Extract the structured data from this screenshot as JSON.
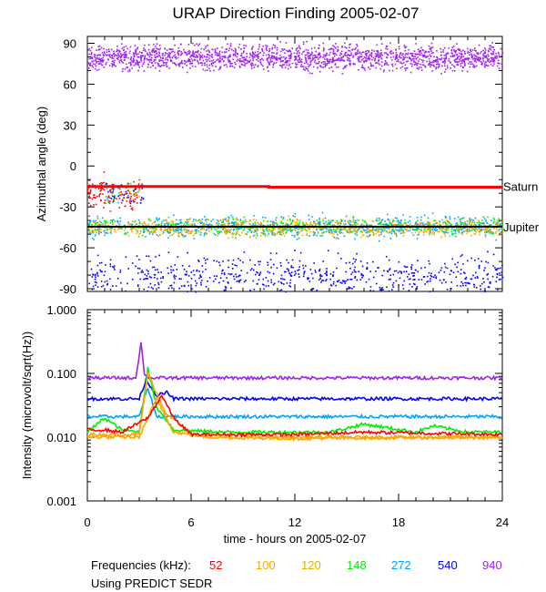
{
  "chart_data": [
    {
      "type": "scatter",
      "title": "URAP Direction Finding  2005-02-07",
      "xlabel": "",
      "ylabel": "Azimuthal angle (deg)",
      "xlim": [
        0,
        24
      ],
      "ylim": [
        -92,
        95
      ],
      "yticks": [
        90,
        60,
        30,
        0,
        -30,
        -60,
        -90
      ],
      "yticklabels": [
        "90",
        "60",
        "30",
        "0",
        "-30",
        "-60",
        "-90"
      ],
      "reference_lines": [
        {
          "name": "Saturn",
          "color": "#ff0000",
          "x": [
            0,
            10.5,
            10.5,
            24
          ],
          "y": [
            -15,
            -15,
            -15.5,
            -15.5
          ]
        },
        {
          "name": "Jupiter",
          "color": "#000000",
          "x": [
            0,
            24
          ],
          "y": [
            -44.5,
            -44.5
          ]
        }
      ],
      "series": [
        {
          "name": "940",
          "color": "#a020f0",
          "x_range": [
            0,
            24
          ],
          "y_center": 80,
          "y_spread": 6
        },
        {
          "name": "148",
          "color": "#00ee00",
          "x_range": [
            0,
            24
          ],
          "y_center": -44,
          "y_spread": 4
        },
        {
          "name": "272",
          "color": "#00a0ff",
          "x_range": [
            0,
            24
          ],
          "y_center": -44,
          "y_spread": 5
        },
        {
          "name": "120",
          "color": "#ffa500",
          "x_range": [
            0,
            24
          ],
          "y_center": -45,
          "y_spread": 4
        },
        {
          "name": "540",
          "color": "#0000ff",
          "x_range": [
            0,
            24
          ],
          "y_center": -80,
          "y_spread": 10
        },
        {
          "name": "52",
          "color": "#ff0000",
          "x_range": [
            0,
            3
          ],
          "y_center": -20,
          "y_spread": 8
        }
      ],
      "annotations": [
        {
          "text": "Saturn",
          "y": -15
        },
        {
          "text": "Jupiter",
          "y": -44.5
        }
      ]
    },
    {
      "type": "line",
      "xlabel": "time - hours on 2005-02-07",
      "ylabel": "Intensity (microvolt/sqrt(Hz))",
      "xlim": [
        0,
        24
      ],
      "xticks": [
        0,
        6,
        12,
        18,
        24
      ],
      "xticklabels": [
        "0",
        "6",
        "12",
        "18",
        "24"
      ],
      "yscale": "log",
      "ylim": [
        0.001,
        1.0
      ],
      "yticks": [
        1.0,
        0.1,
        0.01,
        0.001
      ],
      "yticklabels": [
        "1.000",
        "0.100",
        "0.010",
        "0.001"
      ],
      "series": [
        {
          "name": "940",
          "color": "#a020f0",
          "x": [
            0,
            2.8,
            3.1,
            3.3,
            3.6,
            4,
            24
          ],
          "y": [
            0.085,
            0.085,
            0.3,
            0.1,
            0.085,
            0.085,
            0.085
          ]
        },
        {
          "name": "540",
          "color": "#0000ff",
          "x": [
            0,
            3,
            3.4,
            4,
            4.6,
            5,
            24
          ],
          "y": [
            0.04,
            0.04,
            0.08,
            0.045,
            0.05,
            0.04,
            0.04
          ]
        },
        {
          "name": "272",
          "color": "#00a0ff",
          "x": [
            0,
            3,
            3.5,
            4,
            24
          ],
          "y": [
            0.021,
            0.021,
            0.06,
            0.021,
            0.021
          ]
        },
        {
          "name": "148",
          "color": "#00ee00",
          "x": [
            0,
            1,
            2,
            3,
            3.5,
            4,
            5,
            8,
            12,
            14,
            16,
            19,
            20,
            22,
            24
          ],
          "y": [
            0.012,
            0.02,
            0.013,
            0.012,
            0.12,
            0.03,
            0.013,
            0.012,
            0.012,
            0.012,
            0.016,
            0.012,
            0.015,
            0.012,
            0.012
          ]
        },
        {
          "name": "120",
          "color": "#ffa500",
          "x": [
            0,
            3,
            3.5,
            4.5,
            6,
            12,
            18,
            24
          ],
          "y": [
            0.011,
            0.011,
            0.1,
            0.025,
            0.011,
            0.01,
            0.01,
            0.01
          ]
        },
        {
          "name": "100",
          "color": "#ffa500",
          "x": [
            0,
            3,
            4,
            5,
            7,
            12,
            18,
            24
          ],
          "y": [
            0.01,
            0.01,
            0.04,
            0.012,
            0.01,
            0.0095,
            0.0098,
            0.0098
          ]
        },
        {
          "name": "52",
          "color": "#ff0000",
          "x": [
            0,
            1,
            2,
            3.5,
            4.3,
            5,
            6,
            12,
            16,
            24
          ],
          "y": [
            0.013,
            0.013,
            0.012,
            0.02,
            0.045,
            0.02,
            0.011,
            0.011,
            0.012,
            0.011
          ]
        }
      ]
    }
  ],
  "legend": {
    "label": "Frequencies (kHz):",
    "items": [
      {
        "text": "52",
        "color": "#ff0000"
      },
      {
        "text": "100",
        "color": "#ffa500"
      },
      {
        "text": "120",
        "color": "#e0b000"
      },
      {
        "text": "148",
        "color": "#00ee00"
      },
      {
        "text": "272",
        "color": "#00a0ff"
      },
      {
        "text": "540",
        "color": "#0000ff"
      },
      {
        "text": "940",
        "color": "#a020f0"
      }
    ]
  },
  "footer_note": "Using PREDICT SEDR"
}
